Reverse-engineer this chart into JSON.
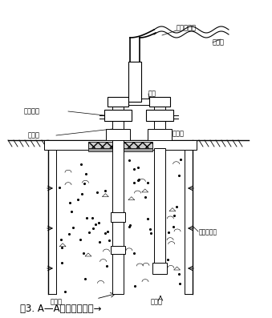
{
  "title": "图3. A—A剖面（注浆）→",
  "bg_color": "#ffffff",
  "lc": "#000000",
  "labels": {
    "high_pressure_pipe": "高压注浆管",
    "connector": "整接插头",
    "valve": "阀门",
    "grouting_machine": "注浆机",
    "grout_pipe": "注浆管",
    "exhaust_pipe": "排气管",
    "grout_pipe_bottom": "注浆管",
    "grout_hole": "排浆孔",
    "pile": "缺陷钻孔桩"
  },
  "figsize": [
    3.39,
    3.97
  ],
  "dpi": 100
}
